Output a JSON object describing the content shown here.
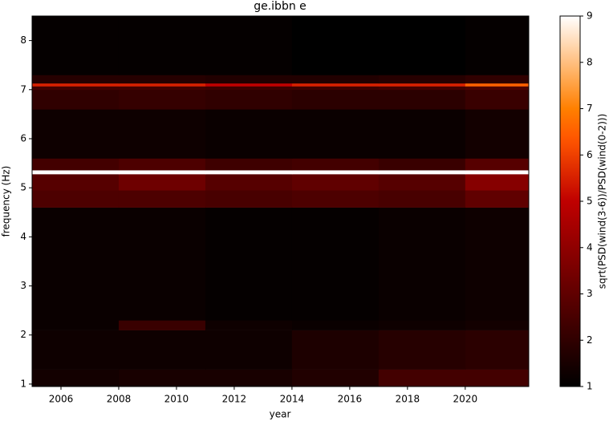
{
  "chart_data": {
    "type": "heatmap",
    "title": "ge.ibbn e",
    "x_label": "year",
    "y_label": "frequency (Hz)",
    "colorbar_label": "sqrt(PSD(wind(3-6))/PSD(wind(0-2)))",
    "colormap": "gist_heat",
    "x_bins": [
      2005,
      2008,
      2011,
      2014,
      2017,
      2020,
      2022.2
    ],
    "y_bins": [
      0.95,
      1.3,
      2.1,
      2.3,
      4.6,
      4.95,
      5.28,
      5.36,
      5.6,
      6.6,
      7.0,
      7.07,
      7.13,
      7.3,
      8.5
    ],
    "values": [
      [
        1.4,
        1.5,
        1.5,
        1.7,
        2.4,
        2.4
      ],
      [
        1.3,
        1.3,
        1.3,
        1.6,
        1.8,
        1.9
      ],
      [
        1.2,
        2.2,
        1.3,
        1.2,
        1.3,
        1.4
      ],
      [
        1.2,
        1.2,
        1.1,
        1.1,
        1.2,
        1.3
      ],
      [
        2.6,
        2.6,
        2.5,
        2.6,
        2.5,
        3.0
      ],
      [
        2.8,
        3.3,
        2.8,
        3.0,
        2.8,
        3.8
      ],
      [
        9,
        9,
        9,
        9,
        9,
        9
      ],
      [
        2.4,
        2.6,
        2.3,
        2.4,
        2.2,
        2.8
      ],
      [
        1.3,
        1.3,
        1.2,
        1.2,
        1.2,
        1.4
      ],
      [
        2.0,
        2.1,
        2.0,
        1.9,
        1.9,
        2.2
      ],
      [
        2.4,
        2.4,
        2.3,
        2.3,
        2.4,
        2.6
      ],
      [
        5.5,
        5.5,
        5.0,
        5.5,
        5.5,
        6.5
      ],
      [
        1.8,
        1.8,
        1.7,
        1.7,
        1.8,
        2.0
      ],
      [
        1.1,
        1.1,
        1.1,
        1.0,
        1.0,
        1.1
      ]
    ],
    "xlim": [
      2005,
      2022.2
    ],
    "ylim": [
      0.95,
      8.5
    ],
    "xticks": [
      2006,
      2008,
      2010,
      2012,
      2014,
      2016,
      2018,
      2020
    ],
    "yticks": [
      1,
      2,
      3,
      4,
      5,
      6,
      7,
      8
    ],
    "clim": [
      1,
      9
    ],
    "cticks": [
      1,
      2,
      3,
      4,
      5,
      6,
      7,
      8,
      9
    ]
  }
}
